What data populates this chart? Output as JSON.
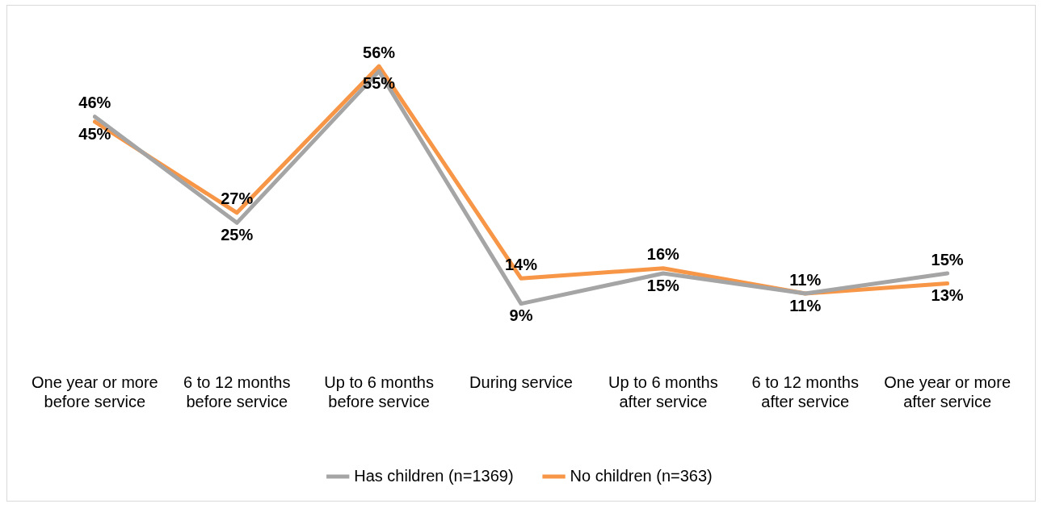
{
  "chart_data": {
    "type": "line",
    "categories": [
      "One year or more before service",
      "6 to 12 months before service",
      "Up to 6 months before service",
      "During service",
      "Up to 6 months after service",
      "6 to 12 months after service",
      "One year or more after service"
    ],
    "series": [
      {
        "name": "Has children (n=1369)",
        "color": "#a5a5a5",
        "values": [
          46,
          25,
          55,
          9,
          15,
          11,
          15
        ],
        "value_labels": [
          "46%",
          "25%",
          "55%",
          "9%",
          "15%",
          "11%",
          "15%"
        ]
      },
      {
        "name": "No children (n=363)",
        "color": "#f79646",
        "values": [
          45,
          27,
          56,
          14,
          16,
          11,
          13
        ],
        "value_labels": [
          "45%",
          "27%",
          "56%",
          "14%",
          "16%",
          "11%",
          "13%"
        ]
      }
    ],
    "legend": "bottom",
    "marker": "none",
    "grid": false
  }
}
